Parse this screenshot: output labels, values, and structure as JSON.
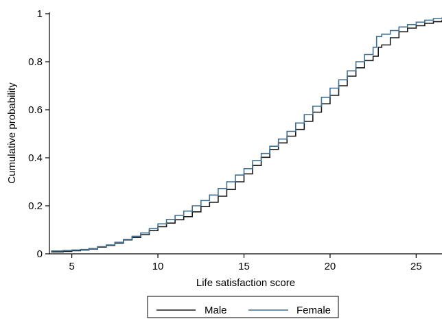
{
  "chart_data": {
    "type": "line",
    "title": "",
    "xlabel": "Life satisfaction score",
    "ylabel": "Cumulative probability",
    "xlim": [
      3.7,
      26.5
    ],
    "ylim": [
      0,
      1
    ],
    "x_ticks": [
      5,
      10,
      15,
      20,
      25
    ],
    "y_ticks": [
      0,
      0.2,
      0.4,
      0.6,
      0.8,
      1
    ],
    "x_tick_labels": [
      "5",
      "10",
      "15",
      "20",
      "25"
    ],
    "y_tick_labels": [
      "0",
      "0.2",
      "0.4",
      "0.6",
      "0.8",
      "1"
    ],
    "grid": false,
    "legend_position": "bottom",
    "series": [
      {
        "name": "Male",
        "color": "#1a1a1a",
        "points": [
          [
            3.8,
            0.008
          ],
          [
            4.5,
            0.01
          ],
          [
            5,
            0.013
          ],
          [
            5.5,
            0.016
          ],
          [
            6,
            0.02
          ],
          [
            6.5,
            0.028
          ],
          [
            7,
            0.035
          ],
          [
            7.5,
            0.045
          ],
          [
            8,
            0.058
          ],
          [
            8.5,
            0.068
          ],
          [
            9,
            0.08
          ],
          [
            9.5,
            0.097
          ],
          [
            10,
            0.113
          ],
          [
            10.5,
            0.128
          ],
          [
            11,
            0.142
          ],
          [
            11.5,
            0.155
          ],
          [
            12,
            0.175
          ],
          [
            12.5,
            0.197
          ],
          [
            13,
            0.215
          ],
          [
            13.5,
            0.24
          ],
          [
            14,
            0.268
          ],
          [
            14.5,
            0.3
          ],
          [
            15,
            0.333
          ],
          [
            15.5,
            0.368
          ],
          [
            16,
            0.402
          ],
          [
            16.5,
            0.435
          ],
          [
            17,
            0.462
          ],
          [
            17.5,
            0.49
          ],
          [
            18,
            0.518
          ],
          [
            18.5,
            0.552
          ],
          [
            19,
            0.59
          ],
          [
            19.5,
            0.625
          ],
          [
            20,
            0.66
          ],
          [
            20.5,
            0.7
          ],
          [
            21,
            0.74
          ],
          [
            21.5,
            0.775
          ],
          [
            22,
            0.805
          ],
          [
            22.5,
            0.823
          ],
          [
            22.8,
            0.86
          ],
          [
            23,
            0.87
          ],
          [
            23.5,
            0.9
          ],
          [
            24,
            0.925
          ],
          [
            24.5,
            0.94
          ],
          [
            25,
            0.95
          ],
          [
            25.5,
            0.96
          ],
          [
            26,
            0.967
          ],
          [
            26.5,
            0.975
          ]
        ]
      },
      {
        "name": "Female",
        "color": "#3f6f93",
        "points": [
          [
            3.8,
            0.012
          ],
          [
            4.5,
            0.014
          ],
          [
            5,
            0.016
          ],
          [
            5.5,
            0.018
          ],
          [
            6,
            0.022
          ],
          [
            6.5,
            0.03
          ],
          [
            7,
            0.037
          ],
          [
            7.5,
            0.048
          ],
          [
            8,
            0.06
          ],
          [
            8.5,
            0.073
          ],
          [
            9,
            0.087
          ],
          [
            9.5,
            0.105
          ],
          [
            10,
            0.125
          ],
          [
            10.5,
            0.143
          ],
          [
            11,
            0.16
          ],
          [
            11.5,
            0.178
          ],
          [
            12,
            0.2
          ],
          [
            12.5,
            0.222
          ],
          [
            13,
            0.245
          ],
          [
            13.5,
            0.272
          ],
          [
            14,
            0.3
          ],
          [
            14.5,
            0.328
          ],
          [
            15,
            0.355
          ],
          [
            15.5,
            0.388
          ],
          [
            16,
            0.418
          ],
          [
            16.5,
            0.448
          ],
          [
            17,
            0.478
          ],
          [
            17.5,
            0.51
          ],
          [
            18,
            0.545
          ],
          [
            18.5,
            0.58
          ],
          [
            19,
            0.615
          ],
          [
            19.5,
            0.652
          ],
          [
            20,
            0.69
          ],
          [
            20.5,
            0.725
          ],
          [
            21,
            0.762
          ],
          [
            21.5,
            0.8
          ],
          [
            22,
            0.83
          ],
          [
            22.5,
            0.86
          ],
          [
            22.7,
            0.905
          ],
          [
            23,
            0.915
          ],
          [
            23.5,
            0.93
          ],
          [
            24,
            0.945
          ],
          [
            24.5,
            0.955
          ],
          [
            25,
            0.965
          ],
          [
            25.5,
            0.973
          ],
          [
            26,
            0.98
          ],
          [
            26.5,
            0.985
          ]
        ]
      }
    ]
  }
}
